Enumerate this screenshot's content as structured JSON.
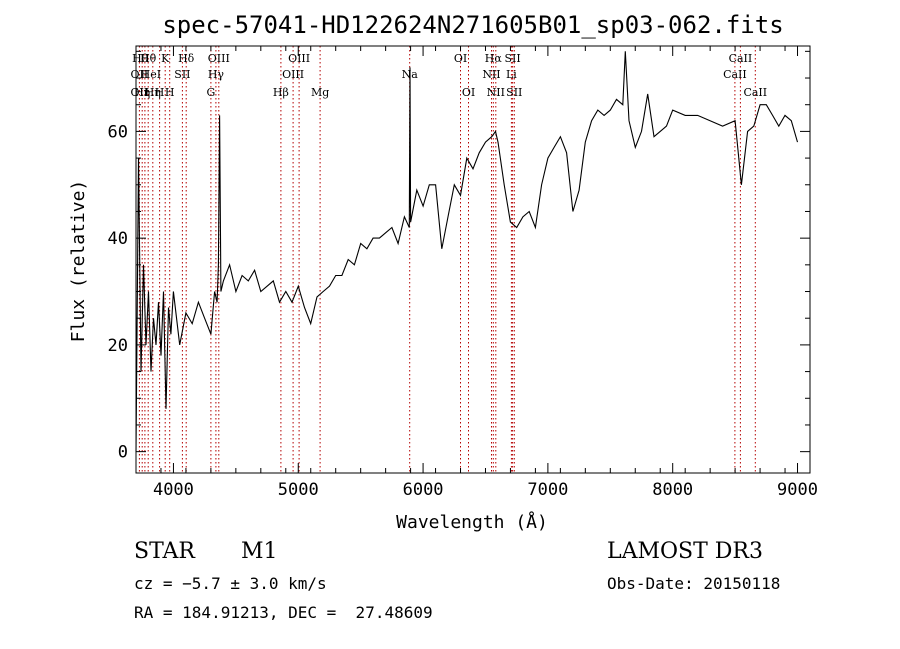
{
  "chart_data": {
    "type": "line",
    "title": "spec-57041-HD122624N271605B01_sp03-062.fits",
    "xlabel": "Wavelength (Å)",
    "ylabel": "Flux (relative)",
    "xlim": [
      3700,
      9100
    ],
    "ylim": [
      -4,
      76
    ],
    "xticks": [
      4000,
      5000,
      6000,
      7000,
      8000,
      9000
    ],
    "yticks": [
      0,
      20,
      40,
      60
    ],
    "series": [
      {
        "name": "flux",
        "x": [
          3700,
          3720,
          3740,
          3760,
          3780,
          3800,
          3820,
          3840,
          3860,
          3880,
          3900,
          3920,
          3940,
          3960,
          3980,
          4000,
          4050,
          4100,
          4150,
          4200,
          4250,
          4300,
          4330,
          4350,
          4360,
          4370,
          4380,
          4400,
          4450,
          4500,
          4550,
          4600,
          4650,
          4700,
          4750,
          4800,
          4850,
          4900,
          4950,
          5000,
          5050,
          5100,
          5150,
          5200,
          5250,
          5300,
          5350,
          5400,
          5450,
          5500,
          5550,
          5600,
          5650,
          5700,
          5750,
          5800,
          5850,
          5890,
          5895,
          5900,
          5950,
          6000,
          6050,
          6100,
          6150,
          6200,
          6250,
          6300,
          6350,
          6400,
          6450,
          6500,
          6550,
          6580,
          6600,
          6650,
          6700,
          6750,
          6800,
          6850,
          6900,
          6950,
          7000,
          7050,
          7100,
          7150,
          7200,
          7250,
          7300,
          7350,
          7400,
          7450,
          7500,
          7550,
          7600,
          7620,
          7650,
          7700,
          7750,
          7800,
          7850,
          7900,
          7950,
          8000,
          8100,
          8200,
          8300,
          8400,
          8500,
          8550,
          8600,
          8650,
          8700,
          8750,
          8800,
          8850,
          8900,
          8950,
          9000
        ],
        "y": [
          0,
          55,
          15,
          35,
          20,
          30,
          15,
          25,
          20,
          28,
          18,
          30,
          8,
          27,
          22,
          30,
          20,
          26,
          24,
          28,
          25,
          22,
          30,
          28,
          35,
          63,
          30,
          32,
          35,
          30,
          33,
          32,
          34,
          30,
          31,
          32,
          28,
          30,
          28,
          31,
          27,
          24,
          29,
          30,
          31,
          33,
          33,
          36,
          35,
          39,
          38,
          40,
          40,
          41,
          42,
          39,
          44,
          42,
          72,
          43,
          49,
          46,
          50,
          50,
          38,
          44,
          50,
          48,
          55,
          53,
          56,
          58,
          59,
          60,
          58,
          50,
          43,
          42,
          44,
          45,
          42,
          50,
          55,
          57,
          59,
          56,
          45,
          49,
          58,
          62,
          64,
          63,
          64,
          66,
          65,
          75,
          62,
          57,
          60,
          67,
          59,
          60,
          61,
          64,
          63,
          63,
          62,
          61,
          62,
          50,
          60,
          61,
          65,
          65,
          63,
          61,
          63,
          62,
          58
        ]
      }
    ],
    "line_labels": [
      {
        "wavelength": 3734,
        "label": "Hθ",
        "row": 0
      },
      {
        "wavelength": 3727,
        "label": "OII",
        "row": 1
      },
      {
        "wavelength": 3727,
        "label": "OII",
        "row": 2
      },
      {
        "wavelength": 3750,
        "label": "Hη",
        "row": 2
      },
      {
        "wavelength": 3798,
        "label": "Hθ",
        "row": 0
      },
      {
        "wavelength": 3819,
        "label": "HeI",
        "row": 1
      },
      {
        "wavelength": 3835,
        "label": "Hη",
        "row": 2
      },
      {
        "wavelength": 3889,
        "label": "H",
        "row": 2
      },
      {
        "wavelength": 3934,
        "label": "K",
        "row": 0
      },
      {
        "wavelength": 3970,
        "label": "H",
        "row": 2
      },
      {
        "wavelength": 4072,
        "label": "SII",
        "row": 1
      },
      {
        "wavelength": 4102,
        "label": "Hδ",
        "row": 0
      },
      {
        "wavelength": 4300,
        "label": "G",
        "row": 2
      },
      {
        "wavelength": 4340,
        "label": "Hγ",
        "row": 1
      },
      {
        "wavelength": 4363,
        "label": "OIII",
        "row": 0
      },
      {
        "wavelength": 4861,
        "label": "Hβ",
        "row": 2
      },
      {
        "wavelength": 4959,
        "label": "OIII",
        "row": 1
      },
      {
        "wavelength": 5007,
        "label": "OIII",
        "row": 0
      },
      {
        "wavelength": 5175,
        "label": "Mg",
        "row": 2
      },
      {
        "wavelength": 5893,
        "label": "Na",
        "row": 1
      },
      {
        "wavelength": 6300,
        "label": "OI",
        "row": 0
      },
      {
        "wavelength": 6364,
        "label": "OI",
        "row": 2
      },
      {
        "wavelength": 6548,
        "label": "NII",
        "row": 1
      },
      {
        "wavelength": 6563,
        "label": "Hα",
        "row": 0
      },
      {
        "wavelength": 6583,
        "label": "NII",
        "row": 2
      },
      {
        "wavelength": 6708,
        "label": "Li",
        "row": 1
      },
      {
        "wavelength": 6717,
        "label": "SII",
        "row": 0
      },
      {
        "wavelength": 6731,
        "label": "SII",
        "row": 2
      },
      {
        "wavelength": 8498,
        "label": "CaII",
        "row": 1
      },
      {
        "wavelength": 8542,
        "label": "CaII",
        "row": 0
      },
      {
        "wavelength": 8662,
        "label": "CaII",
        "row": 2
      }
    ],
    "line_markers": [
      3727,
      3750,
      3771,
      3798,
      3835,
      3889,
      3934,
      3970,
      4072,
      4102,
      4300,
      4340,
      4363,
      4861,
      4959,
      5007,
      5175,
      5893,
      6300,
      6364,
      6548,
      6563,
      6583,
      6708,
      6717,
      6731,
      8498,
      8542,
      8662
    ],
    "colors": {
      "spectrum": "#000000",
      "markers": "#b40000"
    }
  },
  "info": {
    "class": "STAR",
    "subclass": "M1",
    "cz": "cz = −5.7 ± 3.0 km/s",
    "coords": "RA = 184.91213, DEC =  27.48609",
    "survey": "LAMOST DR3",
    "obs_date": "Obs-Date: 20150118"
  }
}
